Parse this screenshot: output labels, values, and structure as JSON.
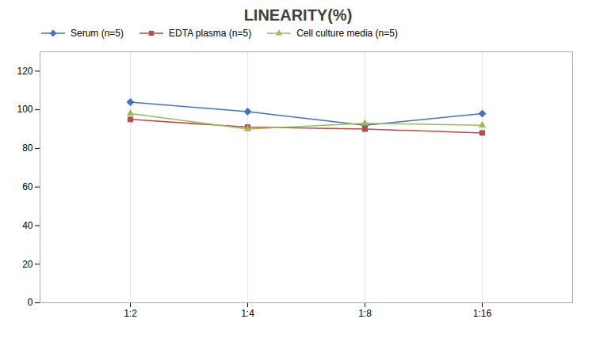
{
  "chart_data": {
    "type": "line",
    "title": "LINEARITY(%)",
    "categories": [
      "1:2",
      "1:4",
      "1:8",
      "1:16"
    ],
    "series": [
      {
        "name": "Serum (n=5)",
        "color": "#4472C4",
        "values": [
          104,
          99,
          92,
          98
        ],
        "marker": "diamond",
        "line_style": "solid"
      },
      {
        "name": "EDTA plasma (n=5)",
        "color": "#BE4B48",
        "values": [
          95,
          91,
          90,
          88
        ],
        "marker": "square",
        "line_style": "solid"
      },
      {
        "name": "Cell culture media (n=5)",
        "color": "#9BBB59",
        "values": [
          98,
          90,
          93,
          92
        ],
        "marker": "triangle",
        "line_style": "solid"
      }
    ],
    "ylim": [
      0,
      130
    ],
    "yticks": [
      0,
      20,
      40,
      60,
      80,
      100,
      120
    ],
    "grid": "x",
    "legend": "top"
  }
}
